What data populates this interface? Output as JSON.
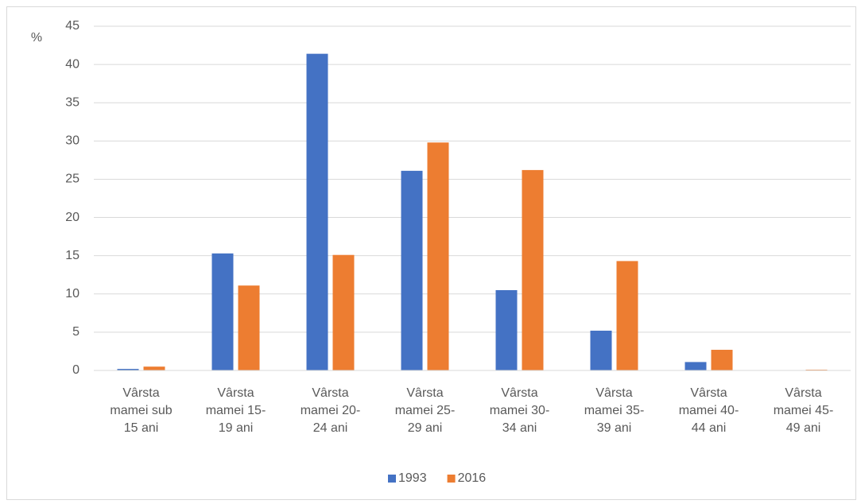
{
  "chart_data": {
    "type": "bar",
    "y_label": "%",
    "categories": [
      "Vârsta mamei sub 15 ani",
      "Vârsta mamei 15-19 ani",
      "Vârsta mamei 20-24 ani",
      "Vârsta mamei 25-29 ani",
      "Vârsta mamei 30-34 ani",
      "Vârsta mamei 35-39 ani",
      "Vârsta mamei 40-44 ani",
      "Vârsta mamei 45-49 ani"
    ],
    "series": [
      {
        "name": "1993",
        "color": "#4472c4",
        "values": [
          0.2,
          15.3,
          41.4,
          26.1,
          10.5,
          5.2,
          1.1,
          0
        ]
      },
      {
        "name": "2016",
        "color": "#ed7d31",
        "values": [
          0.5,
          11.1,
          15.1,
          29.8,
          26.2,
          14.3,
          2.7,
          0.1
        ]
      }
    ],
    "ylim": [
      0,
      45
    ],
    "yticks": [
      0,
      5,
      10,
      15,
      20,
      25,
      30,
      35,
      40,
      45
    ],
    "grid": true,
    "legend": "bottom"
  }
}
